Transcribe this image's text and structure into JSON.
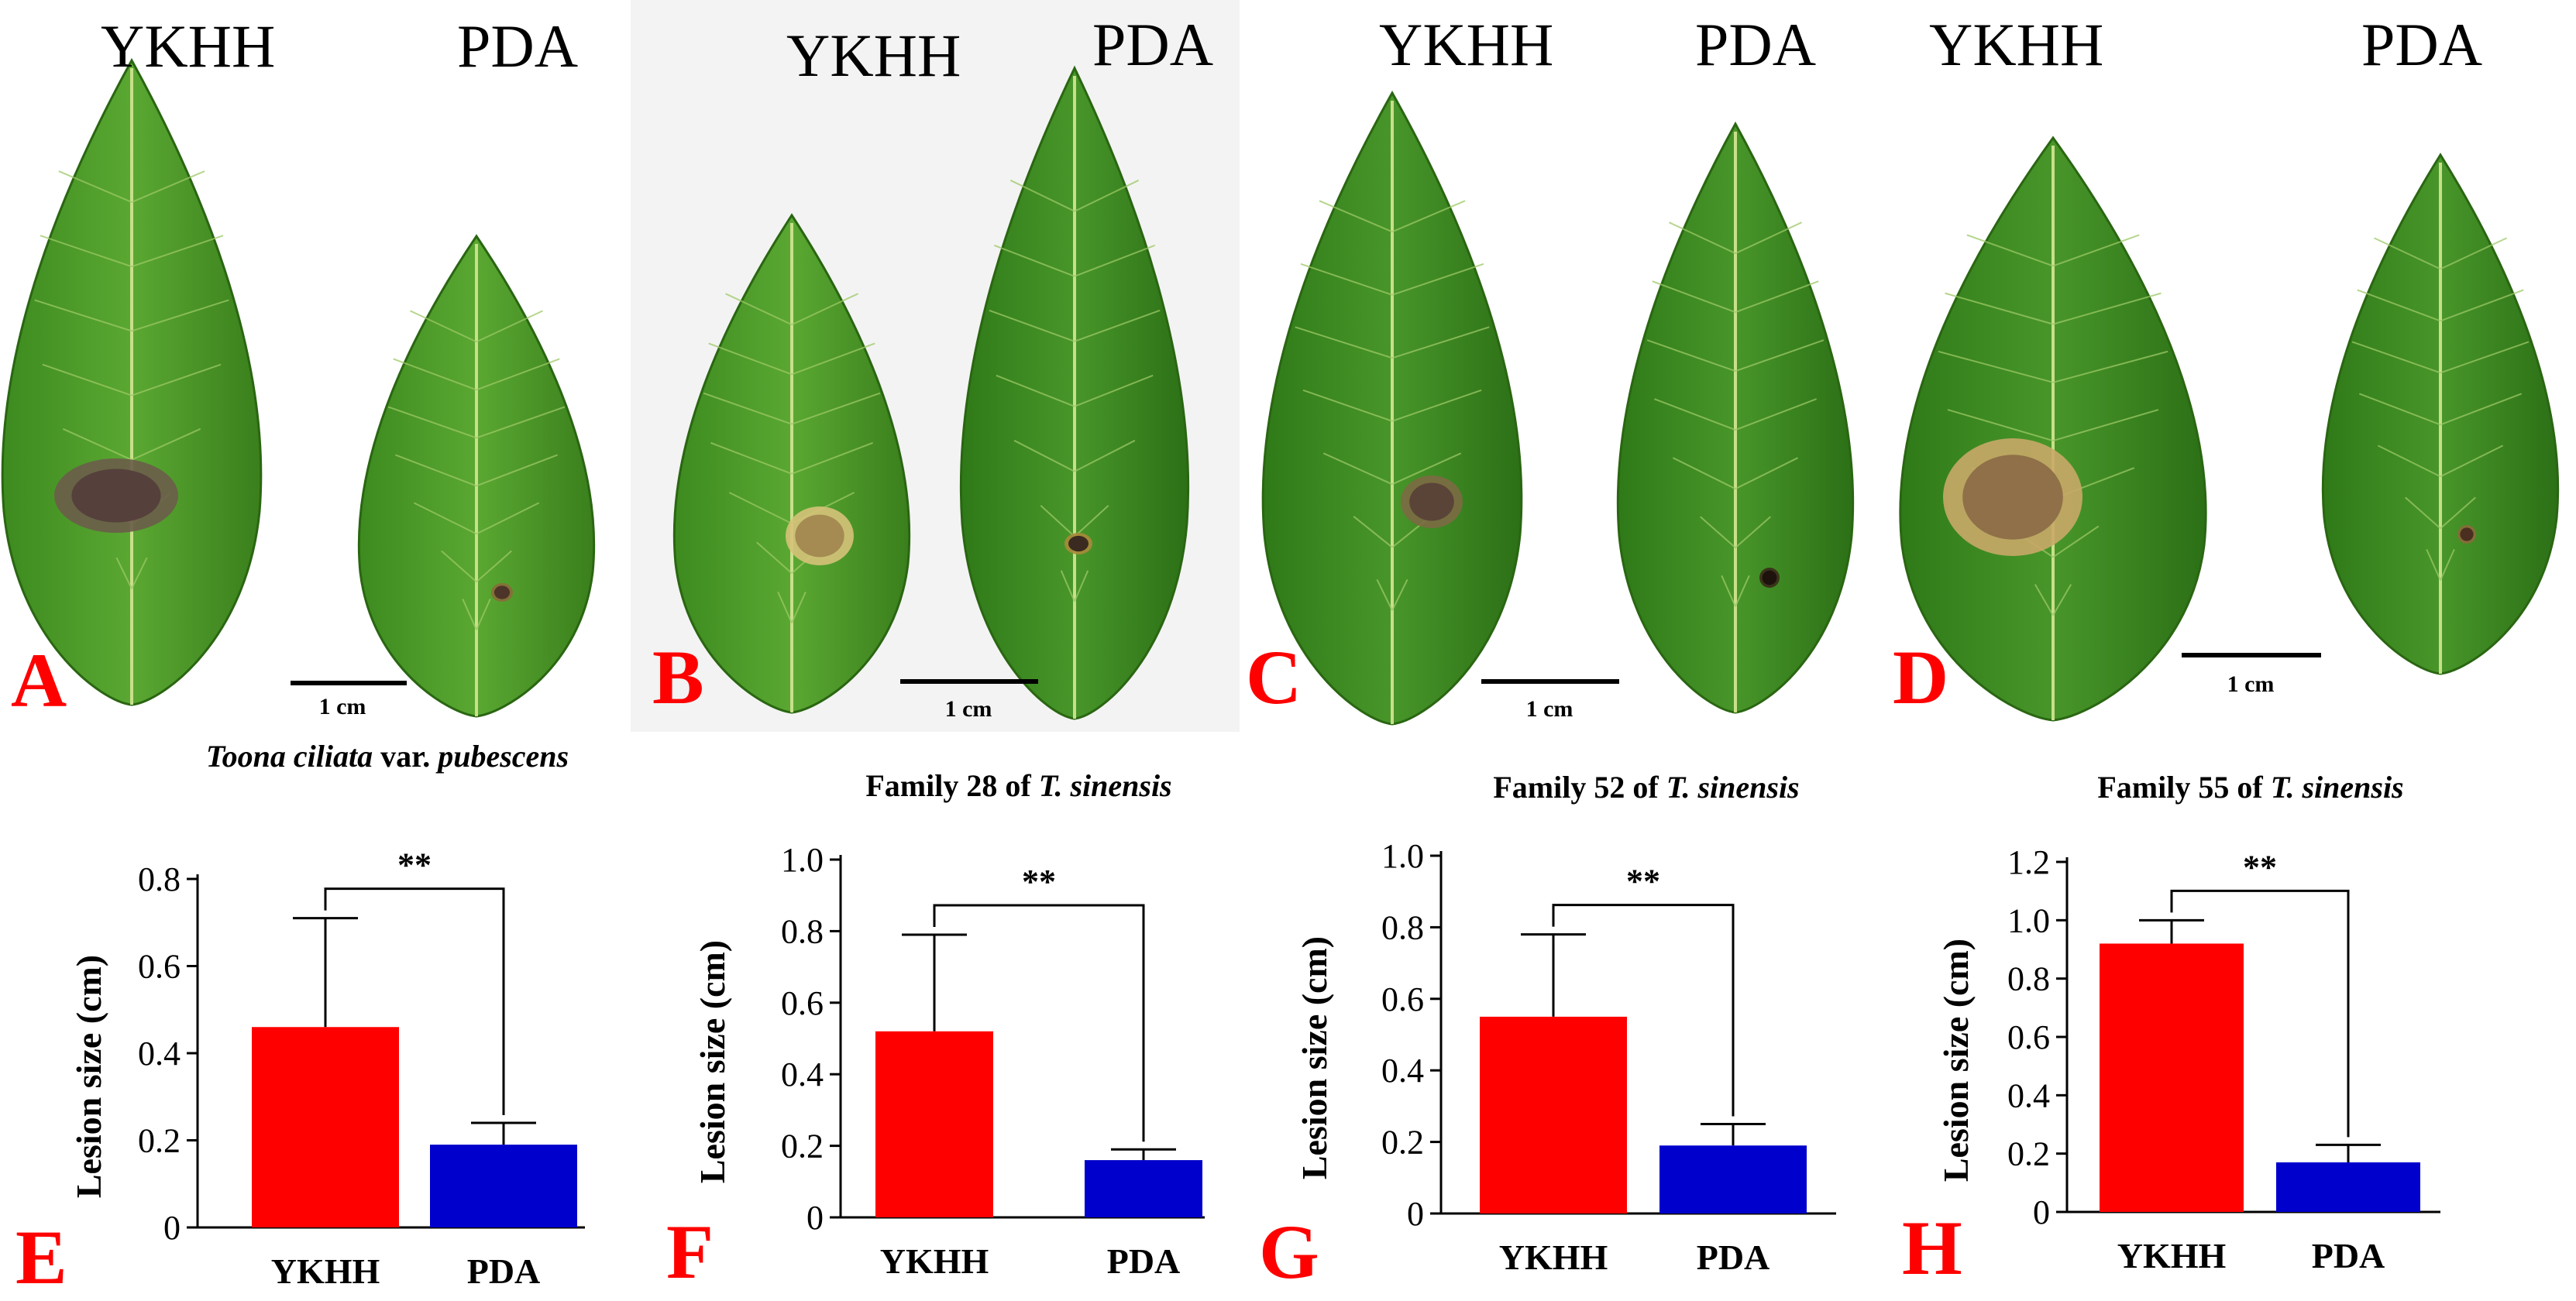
{
  "photo_panels": [
    {
      "letter": "A",
      "left_label": "YKHH",
      "right_label": "PDA",
      "scale_label": "1 cm",
      "background": "#ffffff"
    },
    {
      "letter": "B",
      "left_label": "YKHH",
      "right_label": "PDA",
      "scale_label": "1 cm",
      "background": "#f3f3f3"
    },
    {
      "letter": "C",
      "left_label": "YKHH",
      "right_label": "PDA",
      "scale_label": "1 cm",
      "background": "#ffffff"
    },
    {
      "letter": "D",
      "left_label": "YKHH",
      "right_label": "PDA",
      "scale_label": "1 cm",
      "background": "#ffffff"
    }
  ],
  "chart_data": [
    {
      "type": "bar",
      "letter": "E",
      "title_parts": [
        {
          "text": "Toona ciliata",
          "italic": true
        },
        {
          "text": " var. ",
          "italic": false
        },
        {
          "text": "pubescens",
          "italic": true
        }
      ],
      "categories": [
        "YKHH",
        "PDA"
      ],
      "values": [
        0.46,
        0.19
      ],
      "errors": [
        0.25,
        0.05
      ],
      "ylabel": "Lesion size (cm)",
      "ylim": [
        0,
        0.8
      ],
      "yticks": [
        0,
        0.2,
        0.4,
        0.6,
        0.8
      ],
      "yticklabels": [
        "0",
        "0.2",
        "0.4",
        "0.6",
        "0.8"
      ],
      "significance": "**"
    },
    {
      "type": "bar",
      "letter": "F",
      "title_parts": [
        {
          "text": "Family 28 of ",
          "italic": false
        },
        {
          "text": "T. sinensis",
          "italic": true
        }
      ],
      "categories": [
        "YKHH",
        "PDA"
      ],
      "values": [
        0.52,
        0.16
      ],
      "errors": [
        0.27,
        0.03
      ],
      "ylabel": "Lesion size (cm)",
      "ylim": [
        0,
        1.0
      ],
      "yticks": [
        0,
        0.2,
        0.4,
        0.6,
        0.8,
        1.0
      ],
      "yticklabels": [
        "0",
        "0.2",
        "0.4",
        "0.6",
        "0.8",
        "1.0"
      ],
      "significance": "**"
    },
    {
      "type": "bar",
      "letter": "G",
      "title_parts": [
        {
          "text": "Family 52 of ",
          "italic": false
        },
        {
          "text": "T. sinensis",
          "italic": true
        }
      ],
      "categories": [
        "YKHH",
        "PDA"
      ],
      "values": [
        0.55,
        0.19
      ],
      "errors": [
        0.23,
        0.06
      ],
      "ylabel": "Lesion size (cm)",
      "ylim": [
        0,
        1.0
      ],
      "yticks": [
        0,
        0.2,
        0.4,
        0.6,
        0.8,
        1.0
      ],
      "yticklabels": [
        "0",
        "0.2",
        "0.4",
        "0.6",
        "0.8",
        "1.0"
      ],
      "significance": "**"
    },
    {
      "type": "bar",
      "letter": "H",
      "title_parts": [
        {
          "text": "Family 55 of ",
          "italic": false
        },
        {
          "text": "T. sinensis",
          "italic": true
        }
      ],
      "categories": [
        "YKHH",
        "PDA"
      ],
      "values": [
        0.92,
        0.17
      ],
      "errors": [
        0.08,
        0.06
      ],
      "ylabel": "Lesion size (cm)",
      "ylim": [
        0,
        1.2
      ],
      "yticks": [
        0,
        0.2,
        0.4,
        0.6,
        0.8,
        1.0,
        1.2
      ],
      "yticklabels": [
        "0",
        "0.2",
        "0.4",
        "0.6",
        "0.8",
        "1.0",
        "1.2"
      ],
      "significance": "**"
    }
  ],
  "colors": {
    "ykhh_bar": "#ff0000",
    "pda_bar": "#0000cc",
    "panel_letter": "#ff0000",
    "leaf": "#4f9a2a",
    "lesion": "#5a4640"
  }
}
